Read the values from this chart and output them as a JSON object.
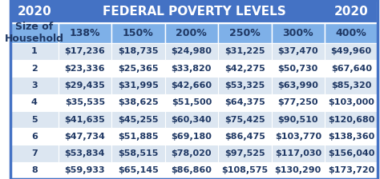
{
  "title": "FEDERAL POVERTY LEVELS",
  "year": "2020",
  "col_headers": [
    "Size of\nHousehold",
    "138%",
    "150%",
    "200%",
    "250%",
    "300%",
    "400%"
  ],
  "rows": [
    [
      1,
      "$17,236",
      "$18,735",
      "$24,980",
      "$31,225",
      "$37,470",
      "$49,960"
    ],
    [
      2,
      "$23,336",
      "$25,365",
      "$33,820",
      "$42,275",
      "$50,730",
      "$67,640"
    ],
    [
      3,
      "$29,435",
      "$31,995",
      "$42,660",
      "$53,325",
      "$63,990",
      "$85,320"
    ],
    [
      4,
      "$35,535",
      "$38,625",
      "$51,500",
      "$64,375",
      "$77,250",
      "$103,000"
    ],
    [
      5,
      "$41,635",
      "$45,255",
      "$60,340",
      "$75,425",
      "$90,510",
      "$120,680"
    ],
    [
      6,
      "$47,734",
      "$51,885",
      "$69,180",
      "$86,475",
      "$103,770",
      "$138,360"
    ],
    [
      7,
      "$53,834",
      "$58,515",
      "$78,020",
      "$97,525",
      "$117,030",
      "$156,040"
    ],
    [
      8,
      "$59,933",
      "$65,145",
      "$86,860",
      "$108,575",
      "$130,290",
      "$173,720"
    ]
  ],
  "header_bg": "#4472C4",
  "header_text": "#FFFFFF",
  "subheader_bg": "#7EB0E8",
  "subheader_text": "#1F3864",
  "row_bg_even": "#FFFFFF",
  "row_bg_odd": "#DCE6F1",
  "cell_text": "#1F3864",
  "border_color": "#FFFFFF",
  "outer_border": "#4472C4",
  "title_fontsize": 11,
  "year_fontsize": 11,
  "header_fontsize": 9,
  "cell_fontsize": 8
}
